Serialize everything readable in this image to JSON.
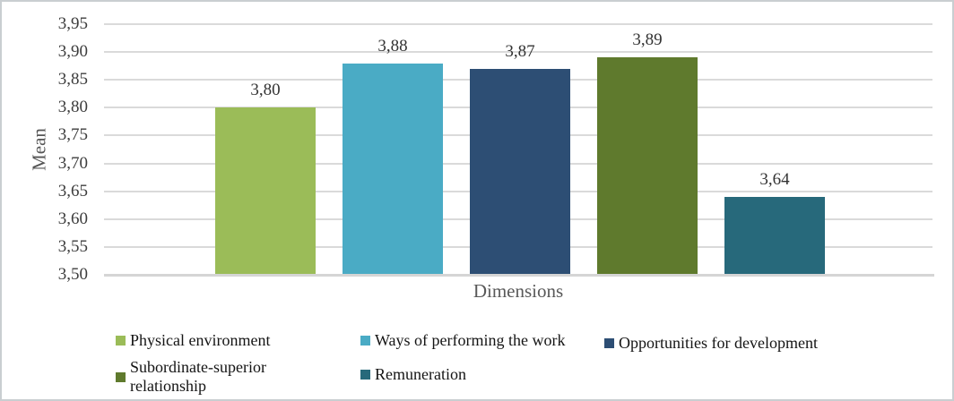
{
  "chart_data": {
    "type": "bar",
    "categories": [
      "Physical environment",
      "Ways of performing the work",
      "Opportunities for development",
      "Subordinate-superior relationship",
      "Remuneration"
    ],
    "values": [
      3.8,
      3.88,
      3.87,
      3.89,
      3.64
    ],
    "value_labels": [
      "3,80",
      "3,88",
      "3,87",
      "3,89",
      "3,64"
    ],
    "bar_colors": [
      "#9bbc58",
      "#4aabc5",
      "#2d4e74",
      "#5f7a2d",
      "#27697b"
    ],
    "title": "",
    "xlabel": "Dimensions",
    "ylabel": "Mean",
    "ylim": [
      3.5,
      3.95
    ],
    "ytick_values": [
      3.95,
      3.9,
      3.85,
      3.8,
      3.75,
      3.7,
      3.65,
      3.6,
      3.55,
      3.5
    ],
    "ytick_labels": [
      "3,95",
      "3,90",
      "3,85",
      "3,80",
      "3,75",
      "3,70",
      "3,65",
      "3,60",
      "3,55",
      "3,50"
    ],
    "grid": "horizontal",
    "legend_position": "bottom",
    "decimal_separator": ","
  },
  "colors": {
    "gridline": "#dadada",
    "axis_line": "#d5d5d5",
    "tick_text": "#3d3d3d",
    "value_text": "#333333",
    "axis_title_text": "#595959",
    "legend_text": "#141414",
    "frame_border": "#c9ced1"
  }
}
